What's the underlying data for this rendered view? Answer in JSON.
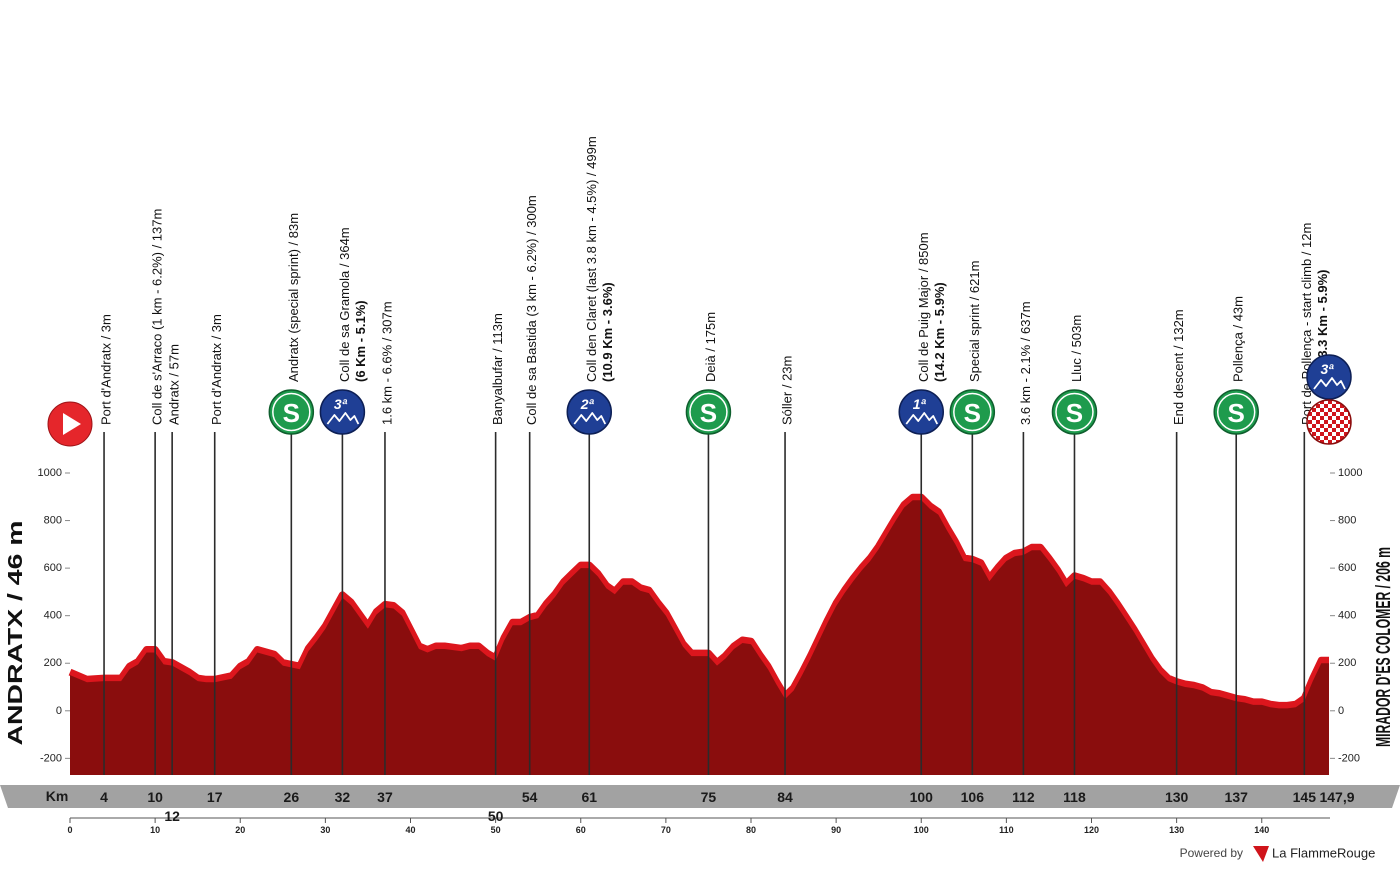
{
  "chart_data": {
    "type": "stage-profile",
    "start": {
      "km": 0,
      "name": "ANDRATX / 46 m"
    },
    "finish": {
      "km": {
        "value": 147.9,
        "label": "147,9"
      },
      "name": "MIRADOR D'ES COLOMER / 206 m",
      "climb_icon": "3ª"
    },
    "km_label": "Km",
    "xlim": [
      0,
      147.9
    ],
    "ylim": [
      -270,
      1000
    ],
    "yticks": [
      -200,
      0,
      200,
      400,
      600,
      800,
      1000
    ],
    "xticks": [
      0,
      10,
      20,
      30,
      40,
      50,
      60,
      70,
      80,
      90,
      100,
      110,
      120,
      130,
      140
    ],
    "profile_color": "#8a0d0d",
    "edge_color": "#dc161d",
    "profile": {
      "km": [
        0,
        2,
        4,
        6,
        7,
        8,
        9,
        10,
        11,
        12,
        14,
        15,
        16,
        17,
        19,
        20,
        21,
        22,
        24,
        25,
        27,
        28,
        29,
        30,
        31,
        32,
        33,
        34,
        35,
        36,
        37,
        38,
        39,
        40,
        41,
        42,
        43,
        44,
        46,
        47,
        48,
        49,
        50,
        51,
        52,
        53,
        54,
        55,
        56,
        57,
        58,
        59,
        60,
        61,
        62,
        63,
        64,
        65,
        66,
        67,
        68,
        69,
        70,
        71,
        72,
        73,
        74,
        75,
        76,
        77,
        78,
        79,
        80,
        81,
        82,
        83,
        84,
        85,
        86,
        87,
        88,
        89,
        90,
        91,
        92,
        93,
        94,
        95,
        96,
        97,
        98,
        99,
        100,
        101,
        102,
        103,
        104,
        105,
        106,
        107,
        108,
        109,
        110,
        111,
        112,
        113,
        114,
        115,
        116,
        117,
        118,
        119,
        120,
        121,
        122,
        123,
        124,
        125,
        126,
        127,
        128,
        129,
        130,
        131,
        132,
        133,
        134,
        135,
        136,
        137,
        138,
        139,
        140,
        141,
        142,
        143,
        144,
        145,
        146,
        147,
        147.9
      ],
      "elevation": [
        150,
        120,
        125,
        125,
        175,
        195,
        245,
        245,
        195,
        190,
        150,
        125,
        120,
        120,
        135,
        175,
        195,
        245,
        225,
        190,
        175,
        250,
        295,
        345,
        410,
        475,
        445,
        395,
        345,
        405,
        435,
        430,
        400,
        330,
        260,
        245,
        260,
        260,
        250,
        260,
        260,
        230,
        210,
        295,
        360,
        360,
        380,
        390,
        440,
        480,
        530,
        565,
        600,
        600,
        565,
        515,
        490,
        530,
        530,
        505,
        495,
        445,
        400,
        335,
        270,
        230,
        230,
        230,
        190,
        220,
        260,
        285,
        280,
        225,
        175,
        110,
        50,
        85,
        150,
        220,
        295,
        370,
        440,
        495,
        545,
        590,
        630,
        680,
        740,
        800,
        855,
        885,
        885,
        850,
        825,
        760,
        700,
        630,
        625,
        610,
        545,
        590,
        630,
        650,
        655,
        675,
        675,
        630,
        580,
        520,
        555,
        545,
        530,
        530,
        490,
        440,
        385,
        330,
        270,
        210,
        160,
        125,
        110,
        100,
        95,
        85,
        65,
        60,
        50,
        40,
        35,
        25,
        25,
        15,
        10,
        10,
        15,
        40,
        125,
        200,
        200
      ]
    },
    "markers": [
      {
        "km": 4,
        "label": "Port d'Andratx / 3m"
      },
      {
        "km": 10,
        "label": "Coll de s'Arraco (1 km - 6.2%) / 137m"
      },
      {
        "km": 12,
        "label": "Andratx / 57m",
        "km_row": "below"
      },
      {
        "km": 17,
        "label": "Port d'Andratx / 3m"
      },
      {
        "km": 26,
        "label": "Andratx (special sprint) / 83m",
        "icon": {
          "kind": "sprint",
          "text": "S"
        }
      },
      {
        "km": 32,
        "label": "Coll de sa Gramola / 364m",
        "detail": "(6 Km - 5.1%)",
        "icon": {
          "kind": "climb",
          "text": "3ª"
        }
      },
      {
        "km": 37,
        "label": "1.6 km - 6.6% / 307m"
      },
      {
        "km": 50,
        "label": "Banyalbufar / 113m",
        "km_row": "below"
      },
      {
        "km": 54,
        "label": "Coll de sa Bastida (3 km - 6.2%) / 300m"
      },
      {
        "km": 61,
        "label": "Coll den Claret (last 3.8 km - 4.5%) / 499m",
        "detail": "(10.9 Km - 3.6%)",
        "icon": {
          "kind": "climb",
          "text": "2ª"
        }
      },
      {
        "km": 75,
        "label": "Deià / 175m",
        "icon": {
          "kind": "sprint",
          "text": "S"
        }
      },
      {
        "km": 84,
        "label": "Sóller / 23m"
      },
      {
        "km": 100,
        "label": "Coll de Puig Major / 850m",
        "detail": "(14.2 Km - 5.9%)",
        "icon": {
          "kind": "climb",
          "text": "1ª"
        }
      },
      {
        "km": 106,
        "label": "Special sprint  / 621m",
        "icon": {
          "kind": "sprint",
          "text": "S"
        }
      },
      {
        "km": 112,
        "label": "3.6 km - 2.1% / 637m"
      },
      {
        "km": 118,
        "label": "Lluc / 503m",
        "icon": {
          "kind": "sprint",
          "text": "S"
        }
      },
      {
        "km": 130,
        "label": "End descent / 132m"
      },
      {
        "km": 137,
        "label": "Pollença / 43m",
        "icon": {
          "kind": "sprint",
          "text": "S"
        }
      },
      {
        "km": 145,
        "label": "Port de Pollença - start climb / 12m",
        "detail": "(3.3 Km - 5.9%)"
      }
    ],
    "credit": {
      "prefix": "Powered by",
      "brand": "La FlammeRouge"
    }
  }
}
